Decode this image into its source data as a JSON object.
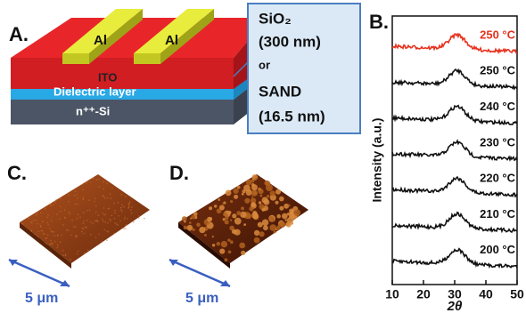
{
  "panel_a": {
    "label": "A.",
    "electrodes": [
      "Al",
      "Al"
    ],
    "layers": [
      "ITO",
      "Dielectric layer",
      "n⁺⁺-Si"
    ],
    "dielectric_options": [
      "SiO₂",
      "(300 nm)",
      "or",
      "SAND",
      "(16.5 nm)"
    ]
  },
  "panel_c": {
    "label": "C.",
    "scale": "5 μm"
  },
  "panel_d": {
    "label": "D.",
    "scale": "5 μm"
  },
  "chart_data": {
    "type": "line",
    "label": "B.",
    "y_label": "Intensity (a.u.)",
    "x_label": "2θ",
    "xlim": [
      10,
      50
    ],
    "xticks": [
      10,
      20,
      30,
      40,
      50
    ],
    "series": [
      {
        "name": "250 °C",
        "color": "#e8321e"
      },
      {
        "name": "250 °C",
        "color": "#111111"
      },
      {
        "name": "240 °C",
        "color": "#111111"
      },
      {
        "name": "230 °C",
        "color": "#111111"
      },
      {
        "name": "220 °C",
        "color": "#111111"
      },
      {
        "name": "210 °C",
        "color": "#111111"
      },
      {
        "name": "200 °C",
        "color": "#111111"
      }
    ]
  }
}
